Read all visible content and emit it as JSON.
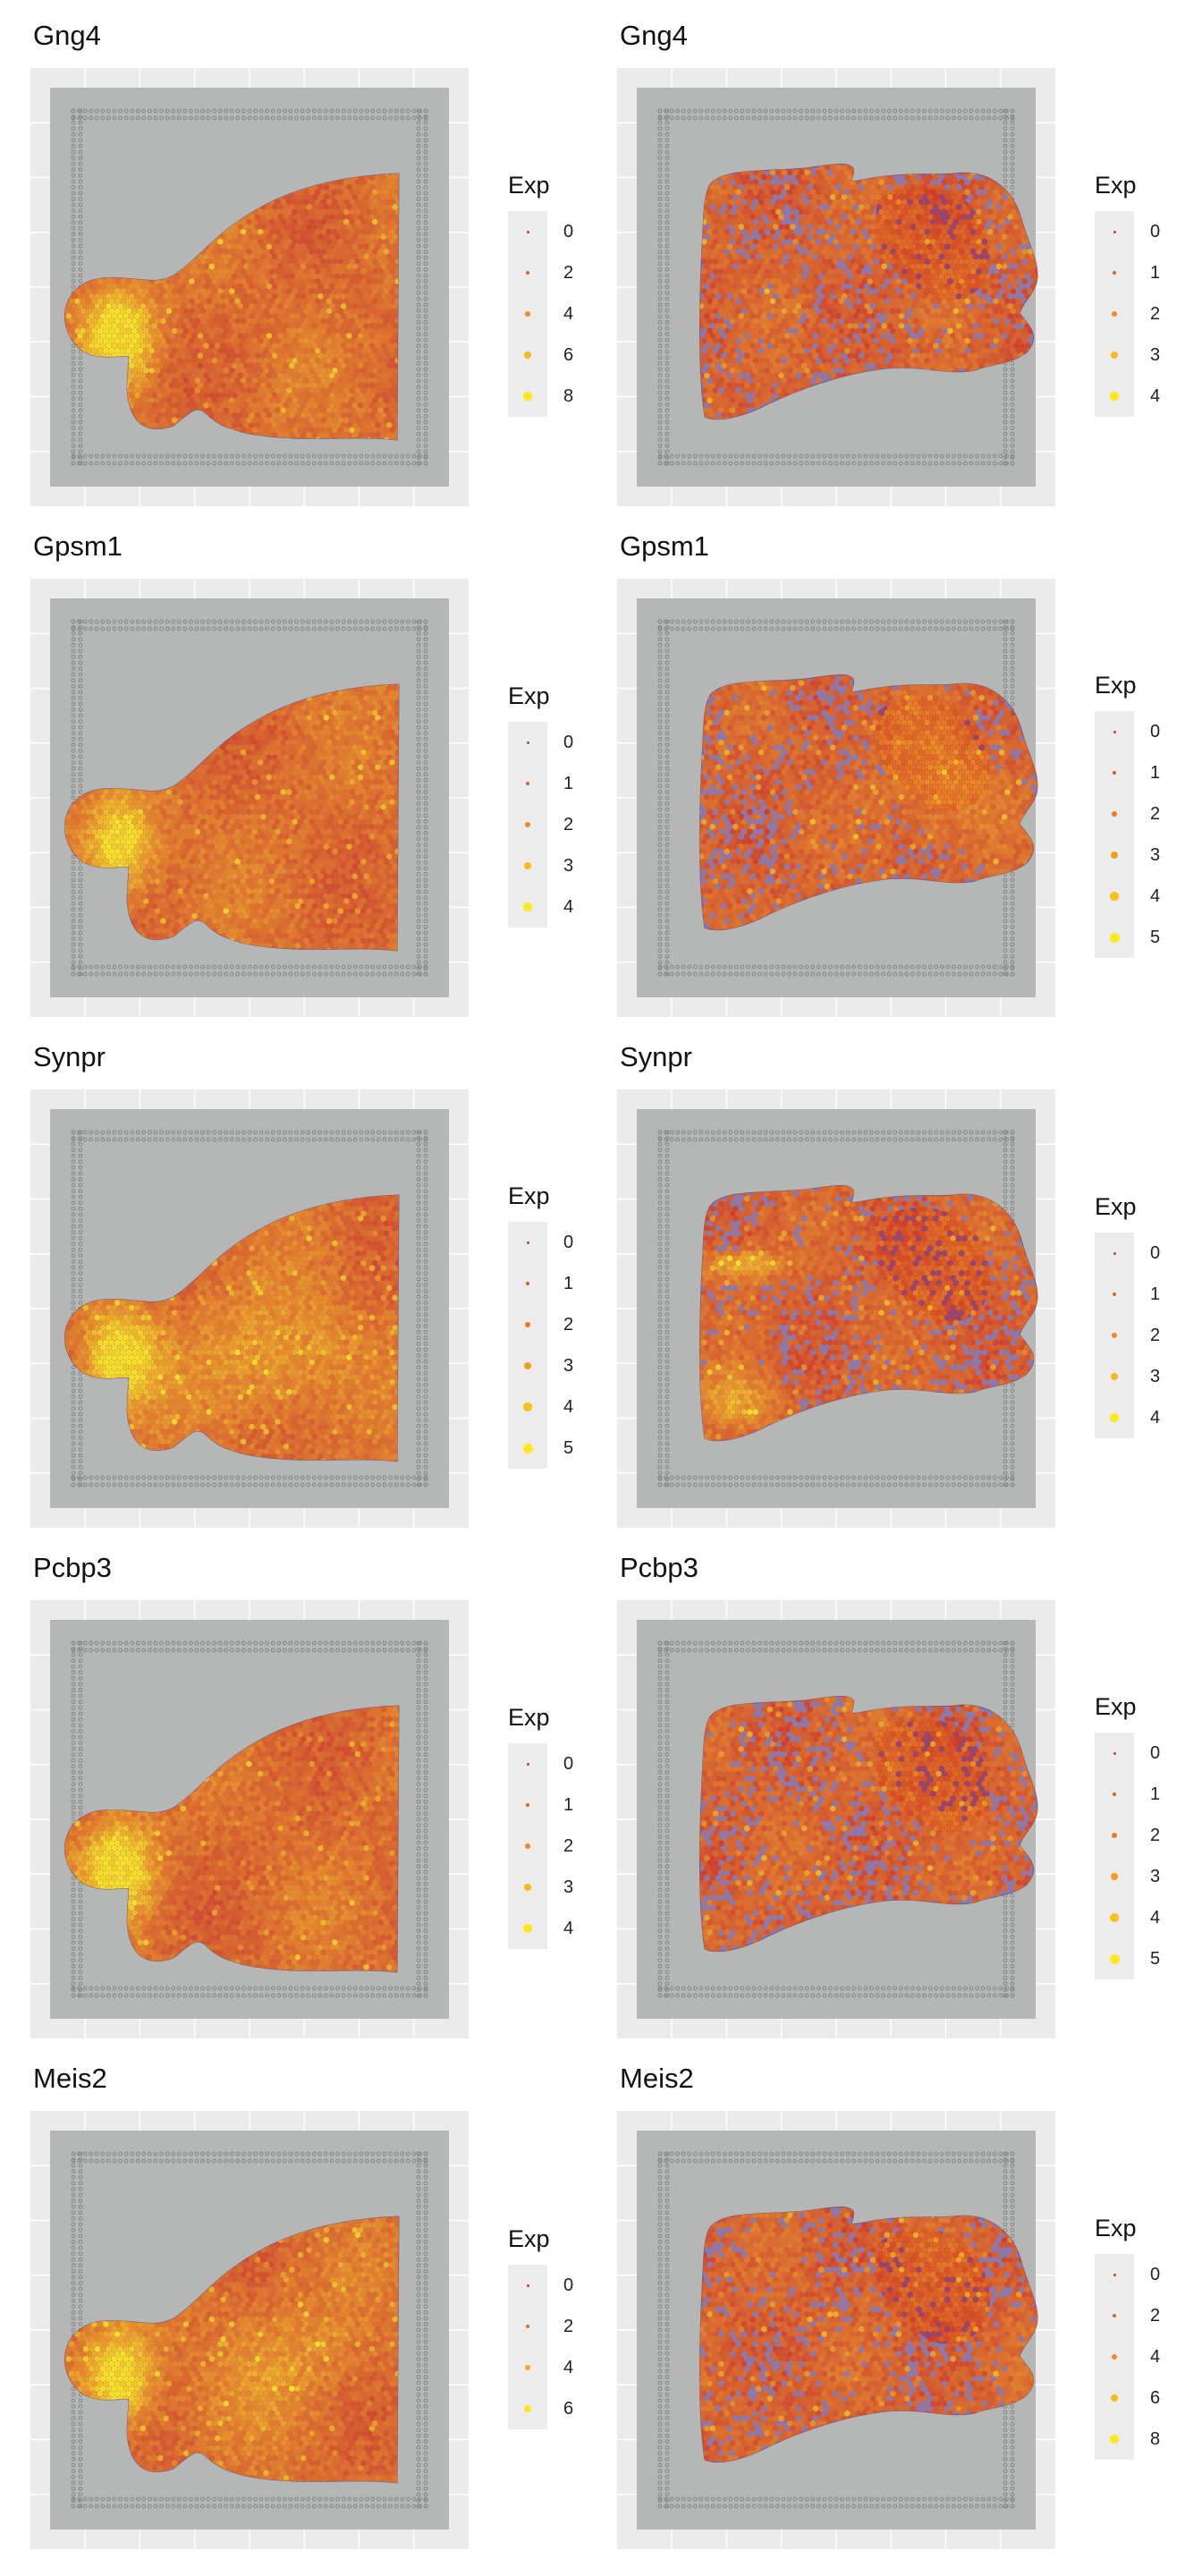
{
  "panels": [
    {
      "title": "Gng4",
      "side": "sagittal-left",
      "legend_title": "Exp",
      "legend": [
        "0",
        "2",
        "4",
        "6",
        "8"
      ]
    },
    {
      "title": "Gng4",
      "side": "sagittal-right",
      "legend_title": "Exp",
      "legend": [
        "0",
        "1",
        "2",
        "3",
        "4"
      ]
    },
    {
      "title": "Gpsm1",
      "side": "sagittal-left",
      "legend_title": "Exp",
      "legend": [
        "0",
        "1",
        "2",
        "3",
        "4"
      ]
    },
    {
      "title": "Gpsm1",
      "side": "sagittal-right",
      "legend_title": "Exp",
      "legend": [
        "0",
        "1",
        "2",
        "3",
        "4",
        "5"
      ]
    },
    {
      "title": "Synpr",
      "side": "sagittal-left",
      "legend_title": "Exp",
      "legend": [
        "0",
        "1",
        "2",
        "3",
        "4",
        "5"
      ]
    },
    {
      "title": "Synpr",
      "side": "sagittal-right",
      "legend_title": "Exp",
      "legend": [
        "0",
        "1",
        "2",
        "3",
        "4"
      ]
    },
    {
      "title": "Pcbp3",
      "side": "sagittal-left",
      "legend_title": "Exp",
      "legend": [
        "0",
        "1",
        "2",
        "3",
        "4"
      ]
    },
    {
      "title": "Pcbp3",
      "side": "sagittal-right",
      "legend_title": "Exp",
      "legend": [
        "0",
        "1",
        "2",
        "3",
        "4",
        "5"
      ]
    },
    {
      "title": "Meis2",
      "side": "sagittal-left",
      "legend_title": "Exp",
      "legend": [
        "0",
        "2",
        "4",
        "6"
      ]
    },
    {
      "title": "Meis2",
      "side": "sagittal-right",
      "legend_title": "Exp",
      "legend": [
        "0",
        "2",
        "4",
        "6",
        "8"
      ]
    }
  ],
  "colors": {
    "panel_background": "#ebebeb",
    "slide_gray": "#b4b7b6",
    "tissue_purple": "#8f78a8",
    "low": "#d63c1e",
    "mid": "#f08a1c",
    "high": "#ffe81a",
    "dark_red_tissue": "#9b3a5a"
  }
}
